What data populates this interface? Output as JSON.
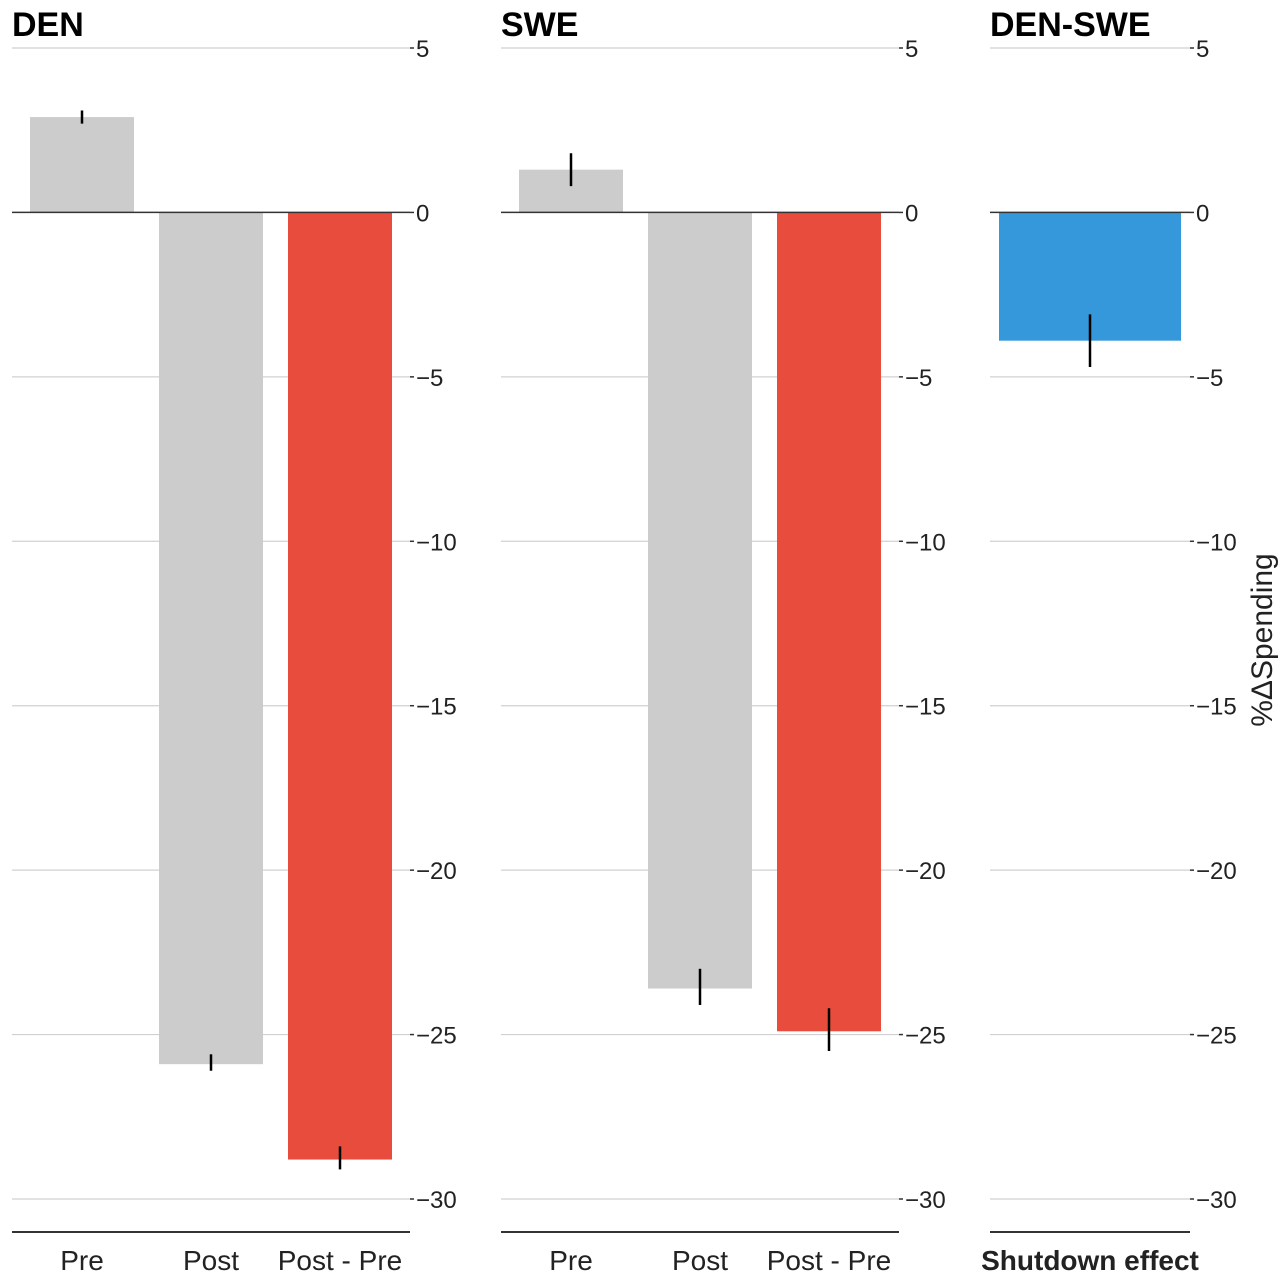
{
  "chart_data": [
    {
      "type": "bar",
      "title": "DEN",
      "categories": [
        "Pre",
        "Post",
        "Post - Pre"
      ],
      "values": [
        2.9,
        -25.9,
        -28.8
      ],
      "error_low": [
        2.7,
        -26.1,
        -29.1
      ],
      "error_high": [
        3.1,
        -25.6,
        -28.4
      ],
      "colors": [
        "#cccccc",
        "#cccccc",
        "#e74c3c"
      ],
      "ylim": [
        -30,
        5
      ],
      "yticks": [
        5,
        0,
        -5,
        -10,
        -15,
        -20,
        -25,
        -30
      ],
      "ytick_labels": [
        "5",
        "0",
        "−5",
        "−10",
        "−15",
        "−20",
        "−25",
        "−30"
      ],
      "grid": true
    },
    {
      "type": "bar",
      "title": "SWE",
      "categories": [
        "Pre",
        "Post",
        "Post - Pre"
      ],
      "values": [
        1.3,
        -23.6,
        -24.9
      ],
      "error_low": [
        0.8,
        -24.1,
        -25.5
      ],
      "error_high": [
        1.8,
        -23.0,
        -24.2
      ],
      "colors": [
        "#cccccc",
        "#cccccc",
        "#e74c3c"
      ],
      "ylim": [
        -30,
        5
      ],
      "yticks": [
        5,
        0,
        -5,
        -10,
        -15,
        -20,
        -25,
        -30
      ],
      "ytick_labels": [
        "5",
        "0",
        "−5",
        "−10",
        "−15",
        "−20",
        "−25",
        "−30"
      ],
      "grid": true
    },
    {
      "type": "bar",
      "title": "DEN-SWE",
      "categories": [
        "Shutdown effect"
      ],
      "values": [
        -3.9
      ],
      "error_low": [
        -4.7
      ],
      "error_high": [
        -3.1
      ],
      "colors": [
        "#3498db"
      ],
      "ylim": [
        -30,
        5
      ],
      "yticks": [
        5,
        0,
        -5,
        -10,
        -15,
        -20,
        -25,
        -30
      ],
      "ytick_labels": [
        "5",
        "0",
        "−5",
        "−10",
        "−15",
        "−20",
        "−25",
        "−30"
      ],
      "grid": true,
      "ylabel": "%ΔSpending"
    }
  ]
}
